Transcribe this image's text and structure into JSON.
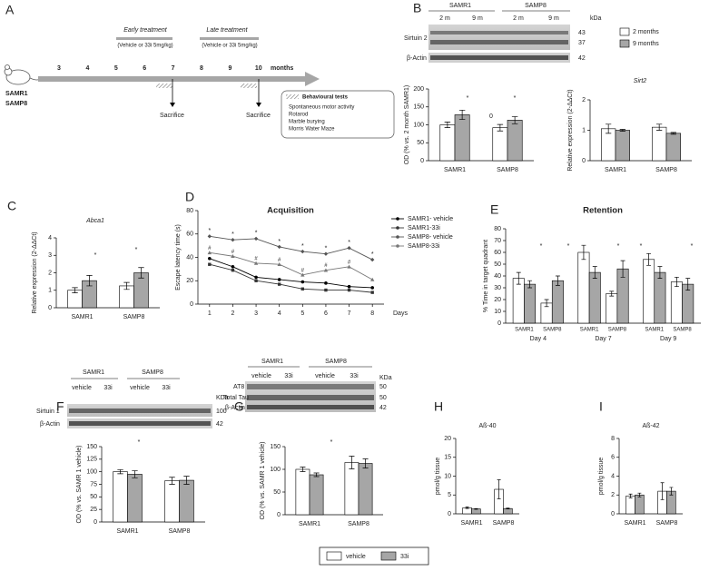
{
  "panel_labels": [
    "A",
    "B",
    "C",
    "D",
    "E",
    "F",
    "G",
    "H",
    "I"
  ],
  "timeline": {
    "subjects": [
      "SAMR1",
      "SAMP8"
    ],
    "months": [
      3,
      4,
      5,
      6,
      7,
      8,
      9,
      10
    ],
    "unit": "months",
    "early": {
      "title": "Early treatment",
      "dose": "(Vehicle or 33i 5mg/kg)"
    },
    "late": {
      "title": "Late treatment",
      "dose": "(Vehicle or 33i 5mg/kg)"
    },
    "sacrifice": [
      "Sacrifice",
      "Sacrifice"
    ],
    "tests": {
      "title": "Behavioural tests",
      "items": [
        "Spontaneous motor activity",
        "Rotarod",
        "Marble burying",
        "Morris Water Maze"
      ]
    }
  },
  "blots": {
    "B": {
      "groups": [
        "SAMR1",
        "SAMP8"
      ],
      "lanes": [
        "2 m",
        "9 m",
        "2 m",
        "9 m"
      ],
      "unit": "kDa",
      "rows": [
        "Sirtuin 2",
        "β-Actin"
      ],
      "sizes": [
        "43",
        "37",
        "42"
      ]
    },
    "F": {
      "groups": [
        "SAMR1",
        "SAMP8"
      ],
      "lanes": [
        "vehicle",
        "33i",
        "vehicle",
        "33i"
      ],
      "unit": "KDa",
      "rows": [
        "Sirtuin 1",
        "β-Actin"
      ],
      "sizes": [
        "100",
        "42"
      ]
    },
    "G": {
      "groups": [
        "SAMR1",
        "SAMP8"
      ],
      "lanes": [
        "vehicle",
        "33i",
        "vehicle",
        "33i"
      ],
      "unit": "KDa",
      "rows": [
        "AT8",
        "Total Tau",
        "β-Actin"
      ],
      "sizes": [
        "50",
        "50",
        "42"
      ]
    }
  },
  "chart_data": [
    {
      "type": "bar",
      "ylabel": "OD (% vs. 2 month SAMR1)",
      "categories": [
        "SAMR1",
        "SAMP8"
      ],
      "series": [
        {
          "name": "2 months",
          "color": "#ffffff",
          "values": [
            100,
            92
          ],
          "errors": [
            8,
            9
          ]
        },
        {
          "name": "9 months",
          "color": "#a6a6a6",
          "values": [
            128,
            113
          ],
          "errors": [
            13,
            10
          ]
        }
      ],
      "ylim": [
        0,
        200
      ],
      "yticks": [
        0,
        50,
        100,
        150,
        200
      ],
      "legend": "top-right",
      "annotations": [
        "*",
        "0",
        "*"
      ]
    },
    {
      "type": "bar",
      "title": "Sirt2",
      "ylabel": "Relative expression (2-ΔΔCt)",
      "categories": [
        "SAMR1",
        "SAMP8"
      ],
      "series": [
        {
          "color": "#ffffff",
          "values": [
            1.05,
            1.1
          ],
          "errors": [
            0.15,
            0.1
          ]
        },
        {
          "color": "#a6a6a6",
          "values": [
            1.0,
            0.9
          ],
          "errors": [
            0.03,
            0.03
          ]
        }
      ],
      "ylim": [
        0,
        2
      ],
      "yticks": [
        0,
        1,
        2
      ]
    },
    {
      "type": "bar",
      "title": "Abca1",
      "ylabel": "Relative expression (2-ΔΔCt)",
      "categories": [
        "SAMR1",
        "SAMP8"
      ],
      "series": [
        {
          "color": "#ffffff",
          "values": [
            1.0,
            1.25
          ],
          "errors": [
            0.15,
            0.2
          ]
        },
        {
          "color": "#a6a6a6",
          "values": [
            1.55,
            2.0
          ],
          "errors": [
            0.3,
            0.3
          ]
        }
      ],
      "ylim": [
        0,
        4
      ],
      "yticks": [
        0,
        1,
        2,
        3,
        4
      ],
      "annotations": [
        "*",
        "*"
      ]
    },
    {
      "type": "line",
      "title": "Acquisition",
      "xlabel": "Days",
      "ylabel": "Escape latency time (s)",
      "x": [
        1,
        2,
        3,
        4,
        5,
        6,
        7,
        8
      ],
      "xlim": [
        0.5,
        8.5
      ],
      "xticks": [
        1,
        2,
        3,
        4,
        5,
        6,
        7,
        8
      ],
      "series": [
        {
          "name": "SAMR1- vehicle",
          "color": "#000000",
          "values": [
            39,
            32,
            23,
            21,
            19,
            18,
            15,
            14
          ]
        },
        {
          "name": "SAMR1-33i",
          "color": "#333333",
          "values": [
            34,
            29,
            20,
            17,
            13,
            12,
            12,
            10
          ]
        },
        {
          "name": "SAMP8- vehicle",
          "color": "#555555",
          "values": [
            58,
            55,
            56,
            49,
            45,
            43,
            48,
            38
          ]
        },
        {
          "name": "SAMP8-33i",
          "color": "#777777",
          "values": [
            44,
            41,
            35,
            34,
            25,
            29,
            32,
            21
          ]
        }
      ],
      "ylim": [
        0,
        80
      ],
      "yticks": [
        0,
        20,
        40,
        60,
        80
      ],
      "legend": "right",
      "annotations": [
        "*",
        "*",
        "*",
        "*",
        "*",
        "*",
        "*",
        "*",
        "#",
        "#",
        "#",
        "#",
        "#",
        "#",
        "#"
      ]
    },
    {
      "type": "bar",
      "title": "Retention",
      "ylabel": "% Time in target quadrant",
      "groups": [
        "Day 4",
        "Day 7",
        "Day 9"
      ],
      "categories": [
        "SAMR1",
        "SAMP8",
        "SAMR1",
        "SAMP8",
        "SAMR1",
        "SAMP8"
      ],
      "series": [
        {
          "color": "#ffffff",
          "values": [
            38,
            17,
            60,
            25,
            54,
            35
          ],
          "errors": [
            5,
            3,
            6,
            2,
            5,
            4
          ]
        },
        {
          "color": "#a6a6a6",
          "values": [
            33,
            36,
            43,
            46,
            43,
            33
          ],
          "errors": [
            3,
            4,
            5,
            7,
            5,
            5
          ]
        }
      ],
      "ylim": [
        0,
        80
      ],
      "yticks": [
        0,
        10,
        20,
        30,
        40,
        50,
        60,
        70,
        80
      ],
      "annotations": [
        "*",
        "*",
        "*",
        "*",
        "*"
      ]
    },
    {
      "type": "bar",
      "ylabel": "OD (% vs. SAMR 1 vehicle)",
      "categories": [
        "SAMR1",
        "SAMP8"
      ],
      "series": [
        {
          "name": "vehicle",
          "color": "#ffffff",
          "values": [
            100,
            82
          ],
          "errors": [
            4,
            7
          ]
        },
        {
          "name": "33i",
          "color": "#a6a6a6",
          "values": [
            95,
            83
          ],
          "errors": [
            7,
            8
          ]
        }
      ],
      "ylim": [
        0,
        150
      ],
      "yticks": [
        0,
        25,
        50,
        75,
        100,
        125,
        150
      ],
      "legend": "bottom",
      "annotations": [
        "*"
      ]
    },
    {
      "type": "bar",
      "ylabel": "OD (% vs. SAMR 1 vehicle)",
      "categories": [
        "SAMR1",
        "SAMP8"
      ],
      "series": [
        {
          "color": "#ffffff",
          "values": [
            100,
            115
          ],
          "errors": [
            5,
            14
          ]
        },
        {
          "color": "#a6a6a6",
          "values": [
            88,
            113
          ],
          "errors": [
            4,
            10
          ]
        }
      ],
      "ylim": [
        0,
        150
      ],
      "yticks": [
        0,
        50,
        100,
        150
      ],
      "annotations": [
        "*"
      ]
    },
    {
      "type": "bar",
      "title": "Aß-40",
      "ylabel": "pmol/g tissue",
      "categories": [
        "SAMR1",
        "SAMP8"
      ],
      "series": [
        {
          "color": "#ffffff",
          "values": [
            1.6,
            6.5
          ],
          "errors": [
            0.2,
            2.5
          ]
        },
        {
          "color": "#a6a6a6",
          "values": [
            1.3,
            1.4
          ],
          "errors": [
            0.1,
            0.1
          ]
        }
      ],
      "ylim": [
        0,
        20
      ],
      "yticks": [
        0,
        5,
        10,
        15,
        20
      ]
    },
    {
      "type": "bar",
      "title": "Aß-42",
      "ylabel": "pmol/g tissue",
      "categories": [
        "SAMR1",
        "SAMP8"
      ],
      "series": [
        {
          "color": "#ffffff",
          "values": [
            1.9,
            2.4
          ],
          "errors": [
            0.2,
            0.9
          ]
        },
        {
          "color": "#a6a6a6",
          "values": [
            2.0,
            2.4
          ],
          "errors": [
            0.2,
            0.4
          ]
        }
      ],
      "ylim": [
        0,
        8
      ],
      "yticks": [
        0,
        2,
        4,
        6,
        8
      ]
    }
  ]
}
